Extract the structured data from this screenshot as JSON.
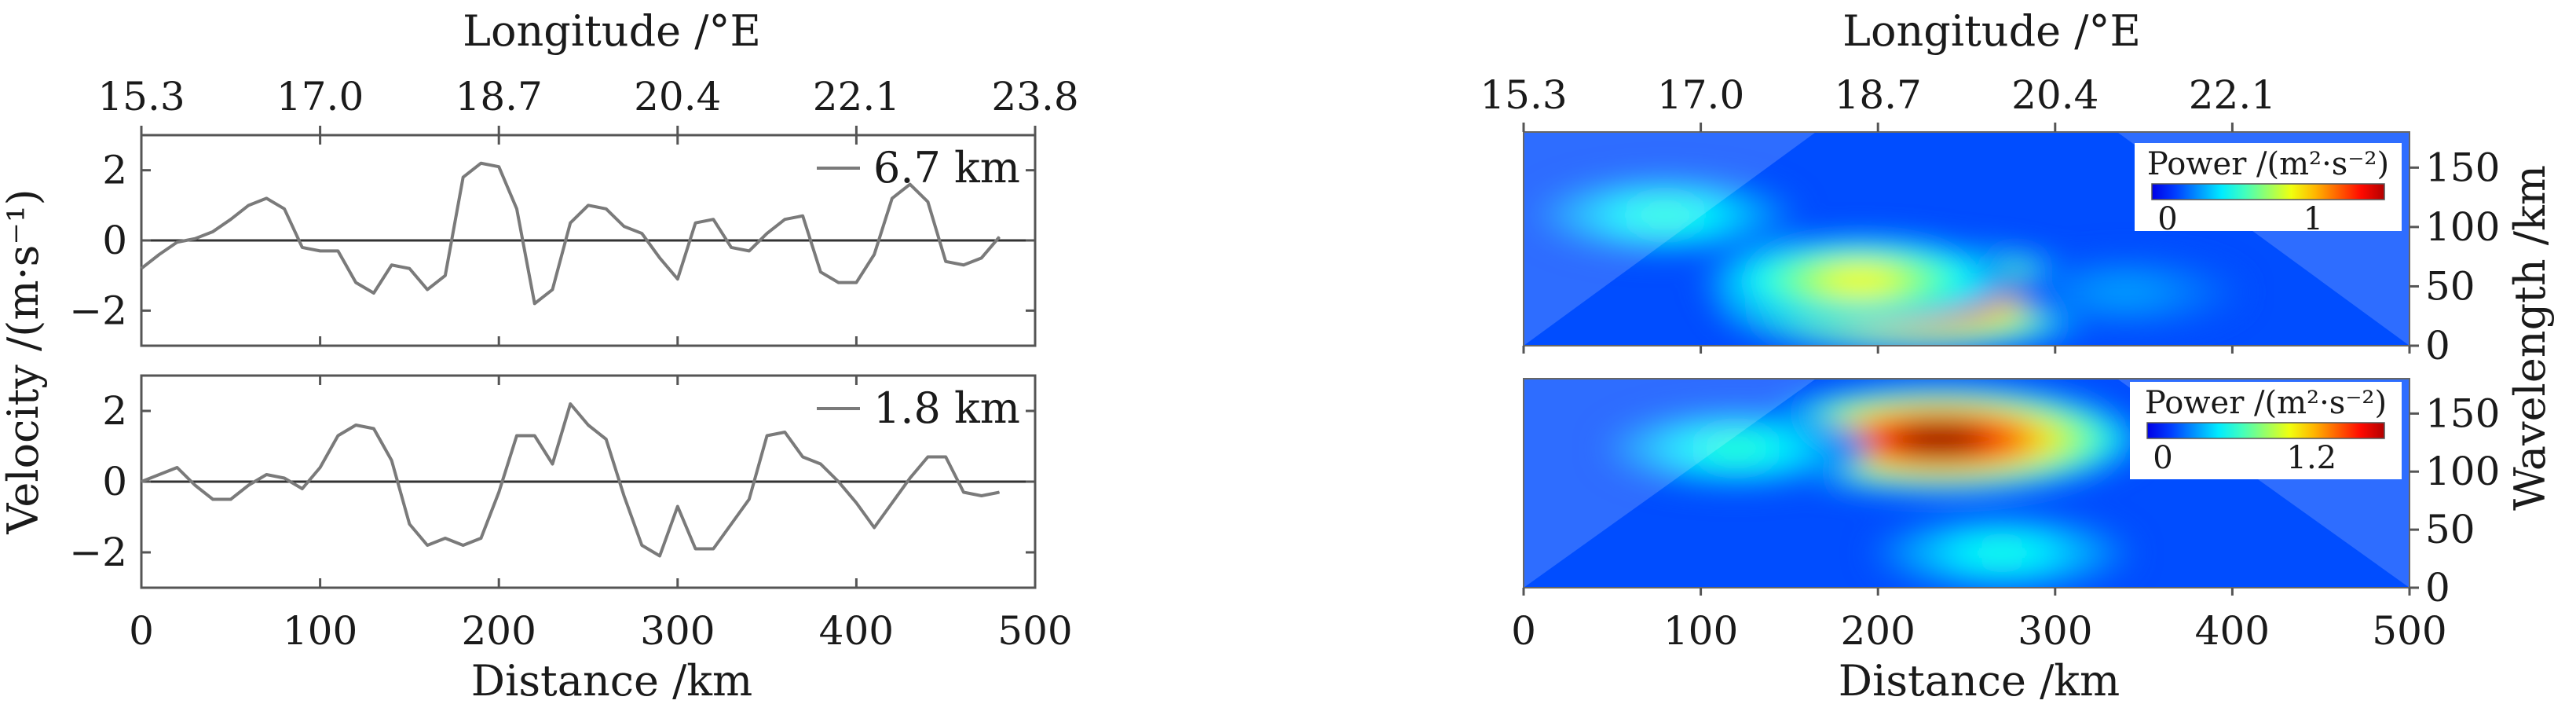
{
  "chart_data": [
    {
      "type": "line",
      "panel": "left-top",
      "top_axis": {
        "label": "Longitude /°E",
        "ticks": [
          "15.3",
          "17.0",
          "18.7",
          "20.4",
          "22.1",
          "23.8"
        ]
      },
      "ylabel": "Velocity /(m·s⁻¹)",
      "xlim": [
        0,
        500
      ],
      "ylim": [
        -3,
        3
      ],
      "y_ticks": [
        "2",
        "0",
        "−2"
      ],
      "zero_line": true,
      "series": [
        {
          "name": "6.7 km",
          "x": [
            0,
            10,
            20,
            30,
            40,
            50,
            60,
            70,
            80,
            90,
            100,
            110,
            120,
            130,
            140,
            150,
            160,
            170,
            180,
            190,
            200,
            210,
            220,
            230,
            240,
            250,
            260,
            270,
            280,
            290,
            300,
            310,
            320,
            330,
            340,
            350,
            360,
            370,
            380,
            390,
            400,
            410,
            420,
            430,
            440,
            450,
            460,
            470,
            480
          ],
          "y": [
            -0.8,
            -0.4,
            -0.05,
            0.05,
            0.25,
            0.6,
            1.0,
            1.2,
            0.9,
            -0.2,
            -0.3,
            -0.3,
            -1.2,
            -1.5,
            -0.7,
            -0.8,
            -1.4,
            -1.0,
            1.8,
            2.2,
            2.1,
            0.9,
            -1.8,
            -1.4,
            0.5,
            1.0,
            0.9,
            0.4,
            0.2,
            -0.5,
            -1.1,
            0.5,
            0.6,
            -0.2,
            -0.3,
            0.2,
            0.6,
            0.7,
            -0.9,
            -1.2,
            -1.2,
            -0.4,
            1.2,
            1.6,
            1.1,
            -0.6,
            -0.7,
            -0.5,
            0.1
          ]
        }
      ]
    },
    {
      "type": "line",
      "panel": "left-bottom",
      "xlabel": "Distance /km",
      "x_ticks": [
        "0",
        "100",
        "200",
        "300",
        "400",
        "500"
      ],
      "xlim": [
        0,
        500
      ],
      "ylim": [
        -3,
        3
      ],
      "y_ticks": [
        "2",
        "0",
        "−2"
      ],
      "zero_line": true,
      "series": [
        {
          "name": "1.8 km",
          "x": [
            0,
            10,
            20,
            30,
            40,
            50,
            60,
            70,
            80,
            90,
            100,
            110,
            120,
            130,
            140,
            150,
            160,
            170,
            180,
            190,
            200,
            210,
            220,
            230,
            240,
            250,
            260,
            270,
            280,
            290,
            300,
            310,
            320,
            330,
            340,
            350,
            360,
            370,
            380,
            390,
            400,
            410,
            420,
            430,
            440,
            450,
            460,
            470,
            480
          ],
          "y": [
            0.0,
            0.2,
            0.4,
            -0.1,
            -0.5,
            -0.5,
            -0.1,
            0.2,
            0.1,
            -0.2,
            0.4,
            1.3,
            1.6,
            1.5,
            0.6,
            -1.2,
            -1.8,
            -1.6,
            -1.8,
            -1.6,
            -0.3,
            1.3,
            1.3,
            0.5,
            2.2,
            1.6,
            1.2,
            -0.4,
            -1.8,
            -2.1,
            -0.7,
            -1.9,
            -1.9,
            -1.2,
            -0.5,
            1.3,
            1.4,
            0.7,
            0.5,
            0.0,
            -0.6,
            -1.3,
            -0.6,
            0.1,
            0.7,
            0.7,
            -0.3,
            -0.4,
            -0.3
          ]
        }
      ]
    },
    {
      "type": "heatmap",
      "panel": "right-top",
      "top_axis": {
        "label": "Longitude /°E",
        "ticks": [
          "15.3",
          "17.0",
          "18.7",
          "20.4",
          "22.1"
        ]
      },
      "ylabel": "Wavelength /km",
      "y_ticks": [
        "150",
        "100",
        "50",
        "0"
      ],
      "xlim": [
        0,
        500
      ],
      "ylim": [
        0,
        180
      ],
      "colorbar": {
        "title": "Power /(m²·s⁻²)",
        "ticks": [
          "0",
          "1"
        ],
        "max": 1.5
      },
      "blobs": [
        {
          "x": 220,
          "y": 40,
          "power": 1.5
        },
        {
          "x": 190,
          "y": 55,
          "power": 0.8
        },
        {
          "x": 80,
          "y": 110,
          "power": 0.4
        },
        {
          "x": 340,
          "y": 45,
          "power": 0.15
        }
      ]
    },
    {
      "type": "heatmap",
      "panel": "right-bottom",
      "xlabel": "Distance /km",
      "x_ticks": [
        "0",
        "100",
        "200",
        "300",
        "400",
        "500"
      ],
      "ylabel": "Wavelength /km",
      "y_ticks": [
        "150",
        "100",
        "50",
        "0"
      ],
      "xlim": [
        0,
        500
      ],
      "ylim": [
        0,
        180
      ],
      "colorbar": {
        "title": "Power /(m²·s⁻²)",
        "ticks": [
          "0",
          "1.2"
        ],
        "max": 1.8
      },
      "blobs": [
        {
          "x": 235,
          "y": 128,
          "power": 1.8
        },
        {
          "x": 120,
          "y": 120,
          "power": 0.5
        },
        {
          "x": 270,
          "y": 30,
          "power": 0.45
        }
      ]
    }
  ]
}
